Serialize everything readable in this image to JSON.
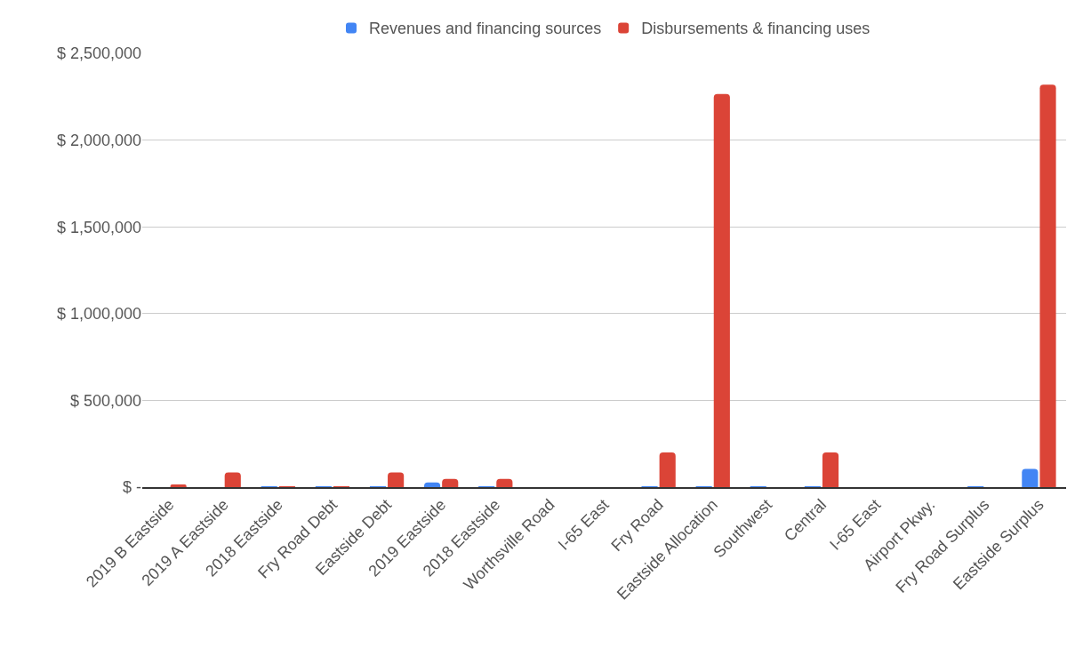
{
  "chart_data": {
    "type": "bar",
    "categories": [
      "2019 B Eastside",
      "2019 A Eastside",
      "2018 Eastside",
      "Fry Road Debt",
      "Eastside Debt",
      "2019 Eastside",
      "2018 Eastside",
      "Worthsville Road",
      "I-65 East",
      "Fry Road",
      "Eastside Allocation",
      "Southwest",
      "Central",
      "I-65 East",
      "Airport Pkwy.",
      "Fry Road Surplus",
      "Eastside Surplus"
    ],
    "series": [
      {
        "name": "Revenues and financing sources",
        "color": "#4285f4",
        "values": [
          0,
          0,
          2000,
          2000,
          2000,
          27000,
          2000,
          0,
          0,
          2000,
          2000,
          2000,
          2000,
          0,
          0,
          2000,
          105000
        ]
      },
      {
        "name": "Disbursements & financing uses",
        "color": "#db4437",
        "values": [
          15000,
          85000,
          2000,
          2000,
          85000,
          48000,
          48000,
          0,
          0,
          200000,
          2265000,
          0,
          200000,
          0,
          0,
          0,
          2320000
        ]
      }
    ],
    "ylim": [
      0,
      2500000
    ],
    "yticks": [
      {
        "value": 0,
        "label": "$ -"
      },
      {
        "value": 500000,
        "label": "$ 500,000"
      },
      {
        "value": 1000000,
        "label": "$ 1,000,000"
      },
      {
        "value": 1500000,
        "label": "$ 1,500,000"
      },
      {
        "value": 2000000,
        "label": "$ 2,000,000"
      },
      {
        "value": 2500000,
        "label": "$ 2,500,000"
      }
    ],
    "grid": "y",
    "legend": "top"
  }
}
